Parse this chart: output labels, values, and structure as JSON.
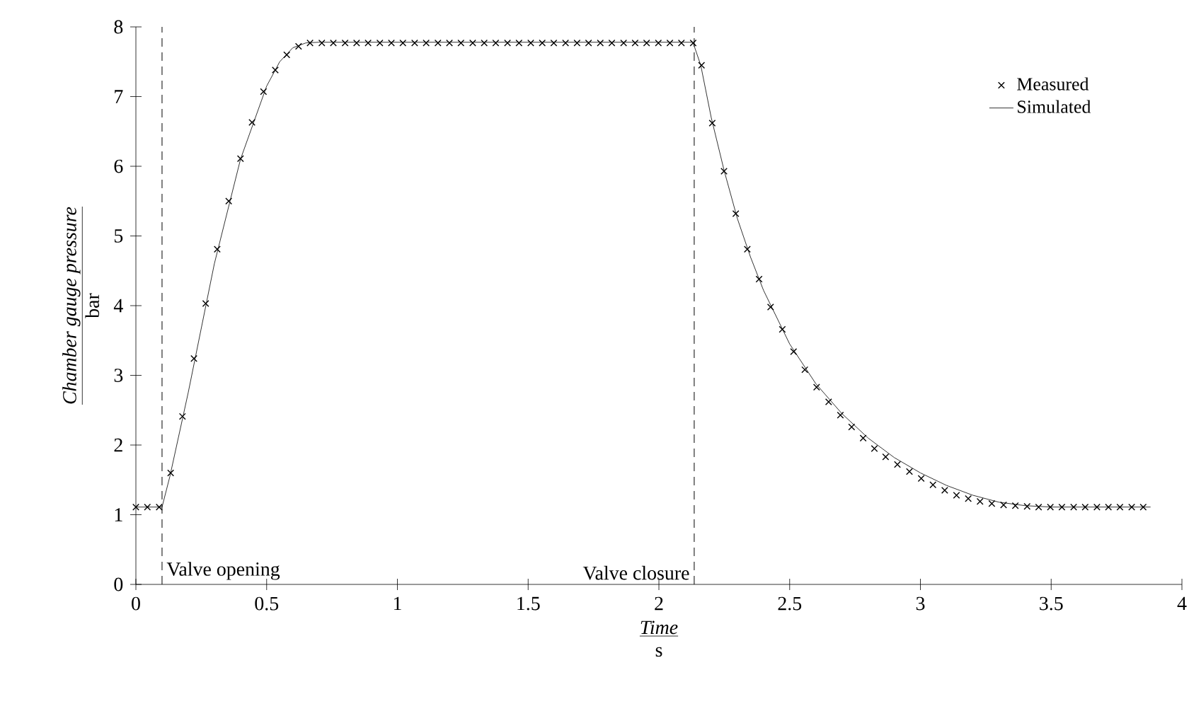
{
  "chart_data": {
    "type": "line",
    "xlabel": "Time",
    "ylabel": "Chamber gauge pressure",
    "annotations": [
      "bar",
      "s"
    ],
    "xlim": [
      0,
      4
    ],
    "ylim": [
      0,
      8
    ],
    "xticks": [
      0,
      0.5,
      1,
      1.5,
      2,
      2.5,
      3,
      3.5,
      4
    ],
    "yticks": [
      0,
      1,
      2,
      3,
      4,
      5,
      6,
      7,
      8
    ],
    "legend": "top right",
    "grid": false,
    "ref_lines": [
      {
        "axis": "x",
        "value": 0.1,
        "label": "Valve opening",
        "line_style": "dashed",
        "color": "#000000"
      },
      {
        "axis": "x",
        "value": 2.135,
        "label": "Valve closure",
        "line_style": "dashed",
        "color": "#000000"
      }
    ],
    "series": [
      {
        "name": "Measured",
        "type": "scatter",
        "marker": "cross",
        "color": "#000000",
        "x": [
          0,
          0.044,
          0.089,
          0.133,
          0.178,
          0.222,
          0.267,
          0.311,
          0.355,
          0.4,
          0.444,
          0.488,
          0.533,
          0.577,
          0.622,
          0.666,
          0.711,
          0.755,
          0.8,
          0.844,
          0.888,
          0.933,
          0.977,
          1.021,
          1.066,
          1.11,
          1.155,
          1.199,
          1.243,
          1.288,
          1.332,
          1.376,
          1.421,
          1.465,
          1.51,
          1.554,
          1.598,
          1.643,
          1.687,
          1.731,
          1.776,
          1.82,
          1.865,
          1.909,
          1.953,
          1.998,
          2.042,
          2.086,
          2.131,
          2.163,
          2.204,
          2.249,
          2.294,
          2.338,
          2.383,
          2.427,
          2.472,
          2.515,
          2.558,
          2.603,
          2.649,
          2.694,
          2.737,
          2.781,
          2.824,
          2.867,
          2.912,
          2.958,
          3.003,
          3.048,
          3.093,
          3.138,
          3.183,
          3.228,
          3.273,
          3.318,
          3.363,
          3.408,
          3.452,
          3.497,
          3.541,
          3.586,
          3.63,
          3.675,
          3.719,
          3.763,
          3.808,
          3.852
        ],
        "values": [
          1.11,
          1.11,
          1.11,
          1.6,
          2.41,
          3.24,
          4.03,
          4.81,
          5.5,
          6.11,
          6.63,
          7.07,
          7.38,
          7.6,
          7.72,
          7.77,
          7.77,
          7.77,
          7.77,
          7.77,
          7.77,
          7.77,
          7.77,
          7.77,
          7.77,
          7.77,
          7.77,
          7.77,
          7.77,
          7.77,
          7.77,
          7.77,
          7.77,
          7.77,
          7.77,
          7.77,
          7.77,
          7.77,
          7.77,
          7.77,
          7.77,
          7.77,
          7.77,
          7.77,
          7.77,
          7.77,
          7.77,
          7.77,
          7.77,
          7.45,
          6.62,
          5.93,
          5.32,
          4.81,
          4.38,
          3.98,
          3.66,
          3.34,
          3.08,
          2.83,
          2.62,
          2.43,
          2.26,
          2.1,
          1.95,
          1.83,
          1.72,
          1.62,
          1.52,
          1.43,
          1.35,
          1.28,
          1.23,
          1.19,
          1.16,
          1.14,
          1.13,
          1.12,
          1.11,
          1.11,
          1.11,
          1.11,
          1.11,
          1.11,
          1.11,
          1.11,
          1.11,
          1.11
        ]
      },
      {
        "name": "Simulated",
        "type": "line",
        "marker": "none",
        "line_style": "solid",
        "color": "#333333",
        "x": [
          0,
          0.1,
          0.13,
          0.2,
          0.3,
          0.4,
          0.5,
          0.55,
          0.6,
          0.65,
          0.7,
          2.13,
          2.16,
          2.2,
          2.25,
          2.3,
          2.35,
          2.4,
          2.5,
          2.6,
          2.7,
          2.8,
          2.9,
          3.0,
          3.1,
          3.2,
          3.3,
          3.4,
          3.5,
          3.88
        ],
        "values": [
          1.11,
          1.11,
          1.55,
          2.75,
          4.6,
          6.1,
          7.15,
          7.5,
          7.7,
          7.77,
          7.78,
          7.78,
          7.45,
          6.7,
          5.93,
          5.25,
          4.7,
          4.22,
          3.45,
          2.88,
          2.45,
          2.1,
          1.82,
          1.6,
          1.42,
          1.28,
          1.18,
          1.13,
          1.11,
          1.11
        ]
      }
    ]
  }
}
